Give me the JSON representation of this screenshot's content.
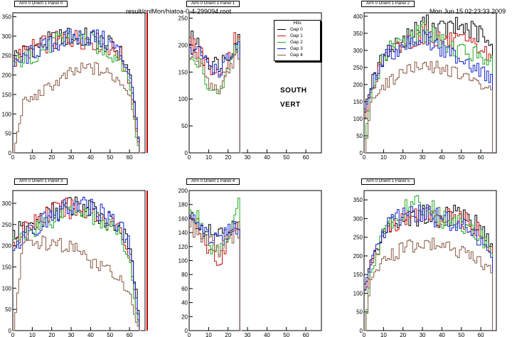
{
  "header": {
    "file": "result/onlMon/hiatoa-0-4-299094.root",
    "date": "Mon Jun 15 02:23:33 2009"
  },
  "legend": {
    "title": "Hits",
    "entries": [
      "Gap 0",
      "Gap 1",
      "Gap 2",
      "Gap 3",
      "Gap 4"
    ]
  },
  "annotations": {
    "line1": "SOUTH",
    "line2": "VERT"
  },
  "colors": {
    "gap0": "#000000",
    "gap1": "#cc1111",
    "gap2": "#22aa22",
    "gap3": "#1122cc",
    "gap4": "#8b5a45"
  },
  "chart_data": [
    {
      "type": "line",
      "title": "Arm 0 Orient 1 Panel 0",
      "xlim": [
        0,
        68
      ],
      "ylim": [
        0,
        360
      ],
      "xticks": [
        0,
        10,
        20,
        30,
        40,
        50,
        60
      ],
      "yticks": [
        0,
        50,
        100,
        150,
        200,
        250,
        300,
        350
      ],
      "series": [
        {
          "name": "Gap 0",
          "color": "#000000",
          "x": [
            0,
            10,
            20,
            30,
            40,
            50,
            55,
            60,
            63,
            65
          ],
          "values": [
            250,
            270,
            290,
            300,
            295,
            275,
            255,
            200,
            80,
            0
          ]
        },
        {
          "name": "Gap 1",
          "color": "#cc1111",
          "x": [
            0,
            10,
            20,
            30,
            40,
            50,
            55,
            60,
            63,
            65
          ],
          "values": [
            240,
            270,
            285,
            295,
            290,
            270,
            250,
            180,
            60,
            0
          ]
        },
        {
          "name": "Gap 2",
          "color": "#22aa22",
          "x": [
            0,
            10,
            20,
            30,
            40,
            50,
            55,
            60,
            63,
            65
          ],
          "values": [
            230,
            250,
            280,
            300,
            285,
            255,
            245,
            170,
            40,
            0
          ]
        },
        {
          "name": "Gap 3",
          "color": "#1122cc",
          "x": [
            0,
            10,
            20,
            30,
            40,
            50,
            55,
            60,
            63,
            65
          ],
          "values": [
            220,
            260,
            280,
            295,
            300,
            280,
            255,
            200,
            90,
            0
          ]
        },
        {
          "name": "Gap 4",
          "color": "#8b5a45",
          "x": [
            0,
            5,
            10,
            20,
            30,
            40,
            50,
            55,
            60,
            63,
            65
          ],
          "values": [
            0,
            130,
            140,
            175,
            205,
            220,
            200,
            185,
            150,
            60,
            0
          ]
        }
      ]
    },
    {
      "type": "line",
      "title": "Arm 0 Orient 1 Panel 1",
      "xlim": [
        0,
        68
      ],
      "ylim": [
        0,
        260
      ],
      "xticks": [
        0,
        10,
        20,
        30,
        40,
        50,
        60
      ],
      "yticks": [
        0,
        50,
        100,
        150,
        200,
        250
      ],
      "series": [
        {
          "name": "Gap 0",
          "color": "#000000",
          "x": [
            0,
            5,
            10,
            15,
            20,
            25,
            26
          ],
          "values": [
            210,
            200,
            170,
            165,
            185,
            210,
            0
          ]
        },
        {
          "name": "Gap 1",
          "color": "#cc1111",
          "x": [
            0,
            5,
            10,
            15,
            20,
            25,
            26
          ],
          "values": [
            200,
            190,
            160,
            140,
            180,
            230,
            0
          ]
        },
        {
          "name": "Gap 2",
          "color": "#22aa22",
          "x": [
            0,
            5,
            10,
            15,
            20,
            25,
            26
          ],
          "values": [
            170,
            165,
            120,
            105,
            160,
            210,
            0
          ]
        },
        {
          "name": "Gap 3",
          "color": "#1122cc",
          "x": [
            0,
            5,
            10,
            15,
            20,
            25,
            26
          ],
          "values": [
            190,
            185,
            165,
            150,
            175,
            200,
            0
          ]
        },
        {
          "name": "Gap 4",
          "color": "#8b5a45",
          "x": [
            0,
            5,
            10,
            15,
            20,
            25,
            26
          ],
          "values": [
            180,
            170,
            130,
            115,
            155,
            190,
            0
          ]
        }
      ]
    },
    {
      "type": "line",
      "title": "Arm 0 Orient 1 Panel 2",
      "xlim": [
        0,
        68
      ],
      "ylim": [
        0,
        410
      ],
      "xticks": [
        0,
        10,
        20,
        30,
        40,
        50,
        60
      ],
      "yticks": [
        0,
        50,
        100,
        150,
        200,
        250,
        300,
        350,
        400
      ],
      "series": [
        {
          "name": "Gap 0",
          "color": "#000000",
          "x": [
            0,
            3,
            10,
            20,
            30,
            40,
            50,
            60,
            65
          ],
          "values": [
            130,
            200,
            290,
            330,
            375,
            360,
            370,
            345,
            300
          ]
        },
        {
          "name": "Gap 1",
          "color": "#cc1111",
          "x": [
            0,
            3,
            10,
            20,
            30,
            40,
            50,
            60,
            65
          ],
          "values": [
            100,
            180,
            280,
            320,
            350,
            330,
            320,
            305,
            270
          ]
        },
        {
          "name": "Gap 2",
          "color": "#22aa22",
          "x": [
            0,
            3,
            10,
            20,
            30,
            40,
            50,
            60,
            65
          ],
          "values": [
            40,
            160,
            290,
            330,
            360,
            320,
            300,
            285,
            270
          ]
        },
        {
          "name": "Gap 3",
          "color": "#1122cc",
          "x": [
            0,
            3,
            10,
            20,
            30,
            40,
            50,
            60,
            65
          ],
          "values": [
            120,
            190,
            280,
            320,
            340,
            300,
            280,
            235,
            220
          ]
        },
        {
          "name": "Gap 4",
          "color": "#8b5a45",
          "x": [
            0,
            3,
            10,
            20,
            30,
            40,
            50,
            60,
            65
          ],
          "values": [
            0,
            140,
            200,
            240,
            250,
            250,
            225,
            195,
            190
          ]
        }
      ]
    },
    {
      "type": "line",
      "title": "Arm 0 Orient 1 Panel 3",
      "xlim": [
        0,
        68
      ],
      "ylim": [
        0,
        330
      ],
      "xticks": [
        0,
        10,
        20,
        30,
        40,
        50,
        60
      ],
      "yticks": [
        0,
        50,
        100,
        150,
        200,
        250,
        300
      ],
      "series": [
        {
          "name": "Gap 0",
          "color": "#000000",
          "x": [
            0,
            10,
            20,
            30,
            40,
            50,
            55,
            60,
            63,
            65
          ],
          "values": [
            230,
            250,
            280,
            295,
            285,
            260,
            240,
            190,
            90,
            0
          ]
        },
        {
          "name": "Gap 1",
          "color": "#cc1111",
          "x": [
            0,
            10,
            20,
            30,
            40,
            50,
            55,
            60,
            63,
            65
          ],
          "values": [
            210,
            255,
            280,
            290,
            280,
            255,
            235,
            170,
            50,
            0
          ]
        },
        {
          "name": "Gap 2",
          "color": "#22aa22",
          "x": [
            0,
            10,
            20,
            30,
            40,
            50,
            55,
            60,
            63,
            65
          ],
          "values": [
            200,
            240,
            265,
            295,
            275,
            245,
            225,
            160,
            40,
            0
          ]
        },
        {
          "name": "Gap 3",
          "color": "#1122cc",
          "x": [
            0,
            10,
            20,
            30,
            40,
            50,
            55,
            60,
            63,
            65
          ],
          "values": [
            200,
            240,
            270,
            295,
            290,
            265,
            245,
            195,
            80,
            0
          ]
        },
        {
          "name": "Gap 4",
          "color": "#8b5a45",
          "x": [
            0,
            5,
            10,
            20,
            30,
            40,
            50,
            55,
            60,
            63,
            65
          ],
          "values": [
            0,
            210,
            210,
            200,
            200,
            160,
            140,
            120,
            80,
            20,
            0
          ]
        }
      ]
    },
    {
      "type": "line",
      "title": "Arm 0 Orient 1 Panel 4",
      "xlim": [
        0,
        68
      ],
      "ylim": [
        0,
        200
      ],
      "xticks": [
        0,
        10,
        20,
        30,
        40,
        50,
        60
      ],
      "yticks": [
        0,
        20,
        40,
        60,
        80,
        100,
        120,
        140,
        160,
        180,
        200
      ],
      "series": [
        {
          "name": "Gap 0",
          "color": "#000000",
          "x": [
            0,
            5,
            10,
            15,
            20,
            25,
            26
          ],
          "values": [
            160,
            155,
            140,
            135,
            145,
            150,
            0
          ]
        },
        {
          "name": "Gap 1",
          "color": "#cc1111",
          "x": [
            0,
            5,
            10,
            15,
            20,
            25,
            26
          ],
          "values": [
            155,
            145,
            115,
            95,
            135,
            165,
            0
          ]
        },
        {
          "name": "Gap 2",
          "color": "#22aa22",
          "x": [
            0,
            5,
            10,
            15,
            20,
            25,
            26
          ],
          "values": [
            175,
            160,
            120,
            110,
            140,
            180,
            0
          ]
        },
        {
          "name": "Gap 3",
          "color": "#1122cc",
          "x": [
            0,
            5,
            10,
            15,
            20,
            25,
            26
          ],
          "values": [
            165,
            155,
            135,
            125,
            145,
            150,
            0
          ]
        },
        {
          "name": "Gap 4",
          "color": "#8b5a45",
          "x": [
            0,
            5,
            10,
            15,
            20,
            25,
            26
          ],
          "values": [
            150,
            140,
            130,
            115,
            130,
            140,
            0
          ]
        }
      ]
    },
    {
      "type": "line",
      "title": "Arm 0 Orient 1 Panel 5",
      "xlim": [
        0,
        68
      ],
      "ylim": [
        0,
        375
      ],
      "xticks": [
        0,
        10,
        20,
        30,
        40,
        50,
        60
      ],
      "yticks": [
        0,
        50,
        100,
        150,
        200,
        250,
        300,
        350
      ],
      "series": [
        {
          "name": "Gap 0",
          "color": "#000000",
          "x": [
            0,
            3,
            10,
            20,
            30,
            40,
            50,
            60,
            65
          ],
          "values": [
            120,
            180,
            270,
            300,
            310,
            300,
            320,
            270,
            230
          ]
        },
        {
          "name": "Gap 1",
          "color": "#cc1111",
          "x": [
            0,
            3,
            10,
            20,
            30,
            40,
            50,
            60,
            65
          ],
          "values": [
            100,
            170,
            260,
            300,
            310,
            300,
            300,
            260,
            220
          ]
        },
        {
          "name": "Gap 2",
          "color": "#22aa22",
          "x": [
            0,
            3,
            10,
            20,
            30,
            40,
            50,
            60,
            65
          ],
          "values": [
            0,
            160,
            270,
            320,
            340,
            300,
            280,
            250,
            200
          ]
        },
        {
          "name": "Gap 3",
          "color": "#1122cc",
          "x": [
            0,
            3,
            10,
            20,
            30,
            40,
            50,
            60,
            65
          ],
          "values": [
            110,
            180,
            270,
            310,
            320,
            295,
            285,
            240,
            200
          ]
        },
        {
          "name": "Gap 4",
          "color": "#8b5a45",
          "x": [
            0,
            3,
            10,
            20,
            30,
            40,
            50,
            60,
            65
          ],
          "values": [
            0,
            130,
            190,
            220,
            230,
            230,
            210,
            180,
            160
          ]
        }
      ]
    }
  ]
}
